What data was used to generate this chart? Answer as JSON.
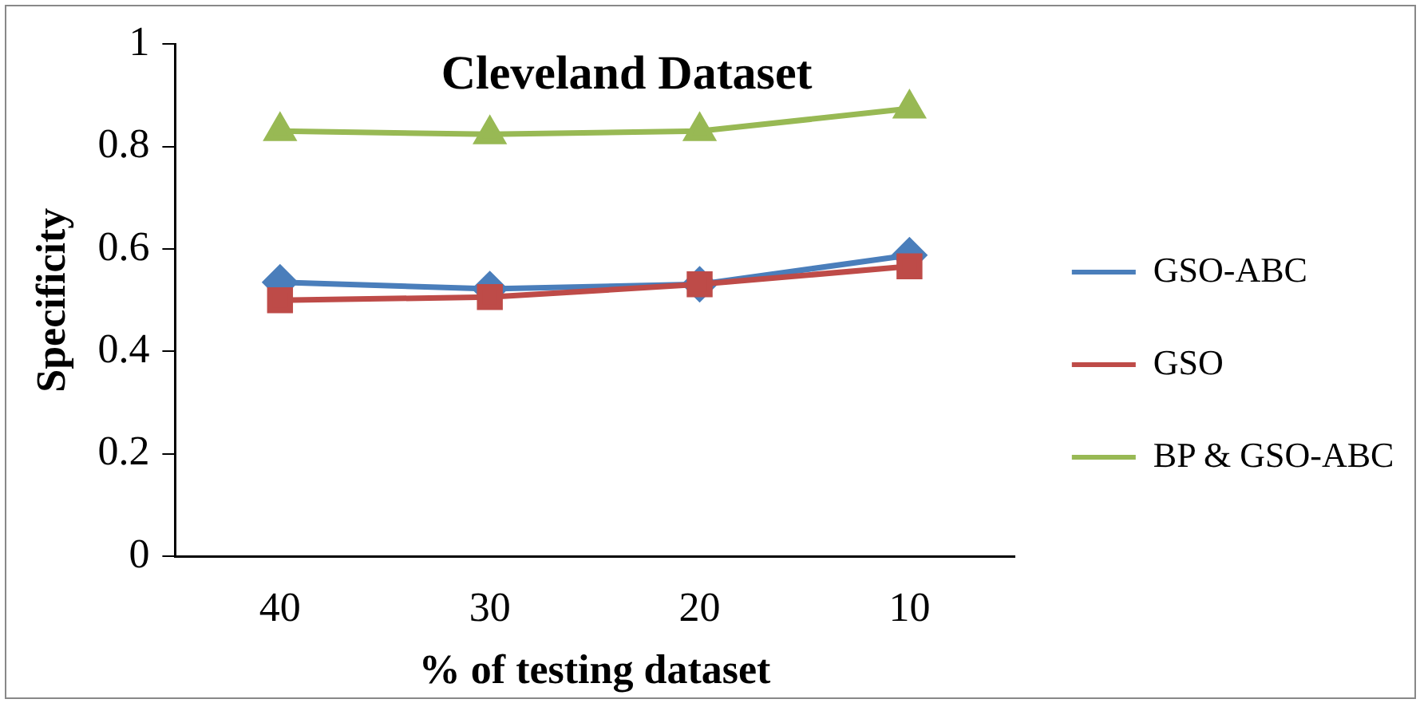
{
  "chart_data": {
    "type": "line",
    "title": "Cleveland Dataset",
    "xlabel": "% of testing dataset",
    "ylabel": "Specificity",
    "categories": [
      "40",
      "30",
      "20",
      "10"
    ],
    "series": [
      {
        "name": "GSO-ABC",
        "color": "#4a7ebb",
        "values": [
          0.535,
          0.522,
          0.531,
          0.588
        ],
        "marker": "diamond"
      },
      {
        "name": "GSO",
        "color": "#be4b48",
        "values": [
          0.5,
          0.506,
          0.531,
          0.566
        ],
        "marker": "square"
      },
      {
        "name": "BP & GSO-ABC",
        "color": "#98b954",
        "values": [
          0.83,
          0.824,
          0.83,
          0.874
        ],
        "marker": "triangle"
      }
    ],
    "ylim": [
      0,
      1
    ],
    "yticks": [
      0,
      0.2,
      0.4,
      0.6,
      0.8,
      1
    ],
    "grid": false,
    "legend": "right",
    "line_style": "solid"
  }
}
